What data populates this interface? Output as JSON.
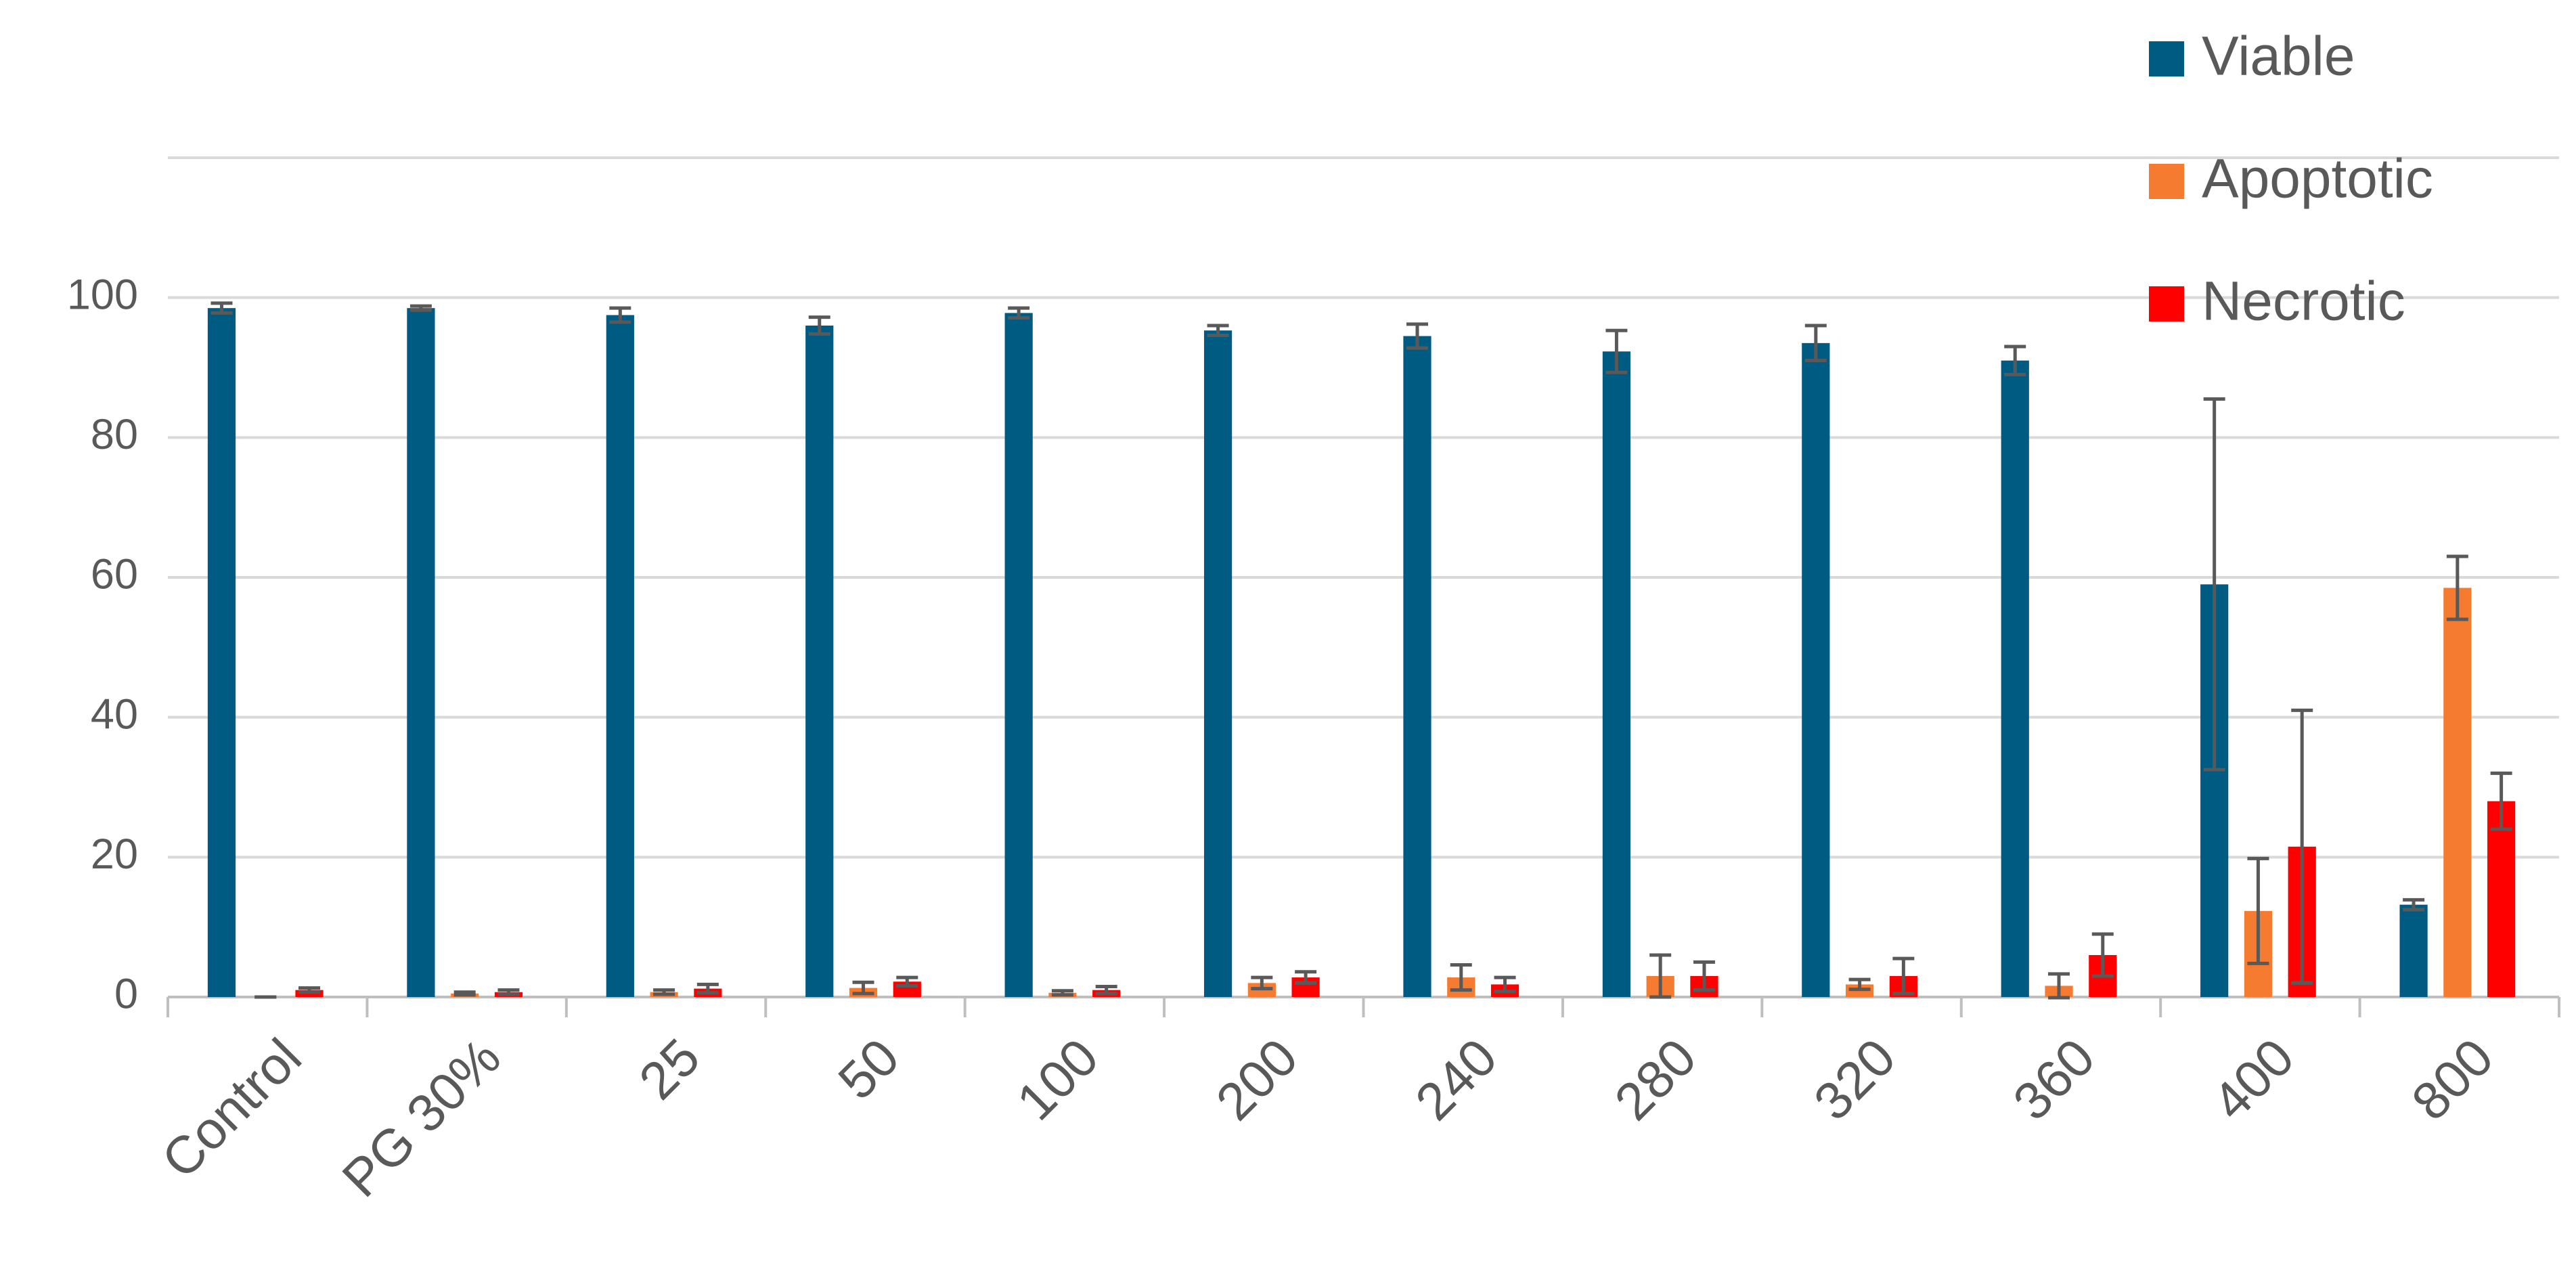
{
  "chart_data": {
    "type": "bar",
    "categories": [
      "Control",
      "PG 30%",
      "25",
      "50",
      "100",
      "200",
      "240",
      "280",
      "320",
      "360",
      "400",
      "800"
    ],
    "series": [
      {
        "name": "Viable",
        "color": "#005b82",
        "values": [
          98.5,
          98.5,
          97.5,
          96,
          97.8,
          95.3,
          94.5,
          92.3,
          93.5,
          91,
          59,
          13.2
        ],
        "errors": [
          0.7,
          0.3,
          1,
          1.2,
          0.7,
          0.7,
          1.7,
          3,
          2.5,
          2,
          26.5,
          0.7
        ]
      },
      {
        "name": "Apoptotic",
        "color": "#f47b30",
        "values": [
          0,
          0.5,
          0.7,
          1.3,
          0.6,
          2,
          2.8,
          3,
          1.8,
          1.6,
          12.3,
          58.5
        ],
        "errors": [
          0,
          0.2,
          0.3,
          0.8,
          0.3,
          0.8,
          1.8,
          3,
          0.7,
          1.7,
          7.5,
          4.5
        ]
      },
      {
        "name": "Necrotic",
        "color": "#ff0000",
        "values": [
          1,
          0.7,
          1.2,
          2.2,
          1,
          2.8,
          1.8,
          3,
          3,
          6,
          21.5,
          28
        ],
        "errors": [
          0.3,
          0.3,
          0.6,
          0.6,
          0.5,
          0.8,
          1,
          2,
          2.5,
          3,
          19.5,
          4
        ]
      }
    ],
    "ylim": [
      0,
      120
    ],
    "yticks": [
      0,
      20,
      40,
      60,
      80,
      100
    ],
    "grid": true,
    "legend": "top-right"
  }
}
